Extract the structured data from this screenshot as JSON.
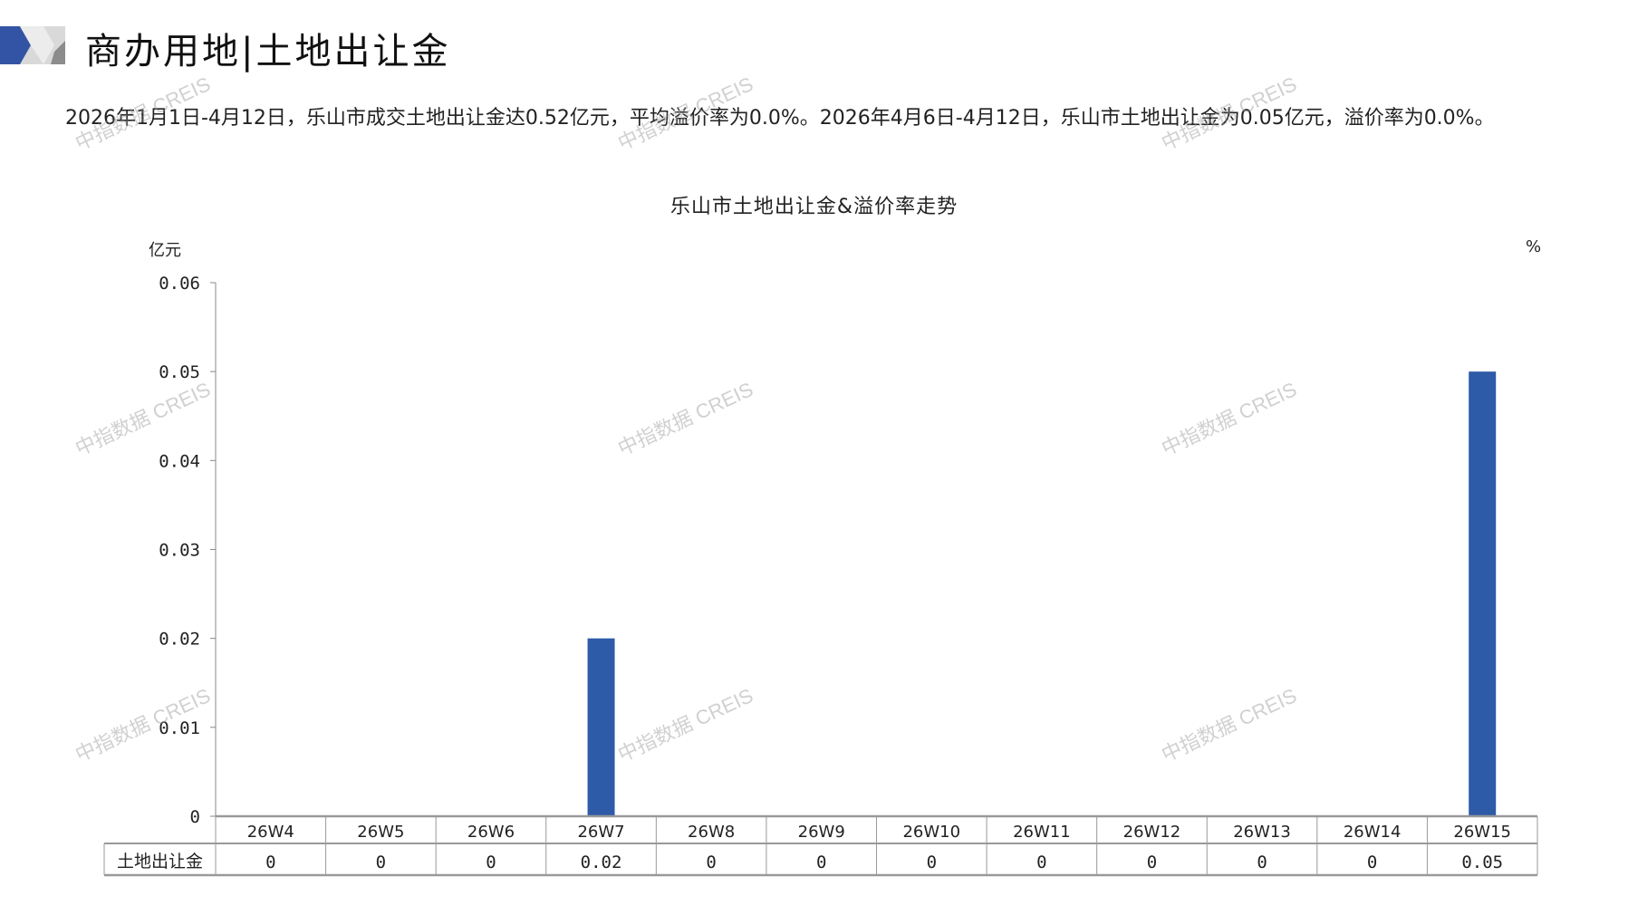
{
  "header": {
    "title": "商办用地|土地出让金"
  },
  "summary": "2026年1月1日-4月12日，乐山市成交土地出让金达0.52亿元，平均溢价率为0.0%。2026年4月6日-4月12日，乐山市土地出让金为0.05亿元，溢价率为0.0%。",
  "watermark": "中指数据 CREIS",
  "colors": {
    "bar": "#2E5BA8",
    "logo_blue": "#3354A4",
    "logo_gray": "#A8A8A8"
  },
  "chart_data": {
    "type": "bar",
    "title": "乐山市土地出让金&溢价率走势",
    "ylabel_left": "亿元",
    "ylabel_right": "%",
    "ylim": [
      0,
      0.06
    ],
    "yticks": [
      "0.06",
      "0.05",
      "0.04",
      "0.03",
      "0.02",
      "0.01",
      "0"
    ],
    "categories": [
      "26W4",
      "26W5",
      "26W6",
      "26W7",
      "26W8",
      "26W9",
      "26W10",
      "26W11",
      "26W12",
      "26W13",
      "26W14",
      "26W15"
    ],
    "series": [
      {
        "name": "土地出让金",
        "values": [
          0,
          0,
          0,
          0.02,
          0,
          0,
          0,
          0,
          0,
          0,
          0,
          0.05
        ]
      }
    ],
    "table_labels": [
      "0",
      "0",
      "0",
      "0.02",
      "0",
      "0",
      "0",
      "0",
      "0",
      "0",
      "0",
      "0.05"
    ],
    "grid": false
  }
}
